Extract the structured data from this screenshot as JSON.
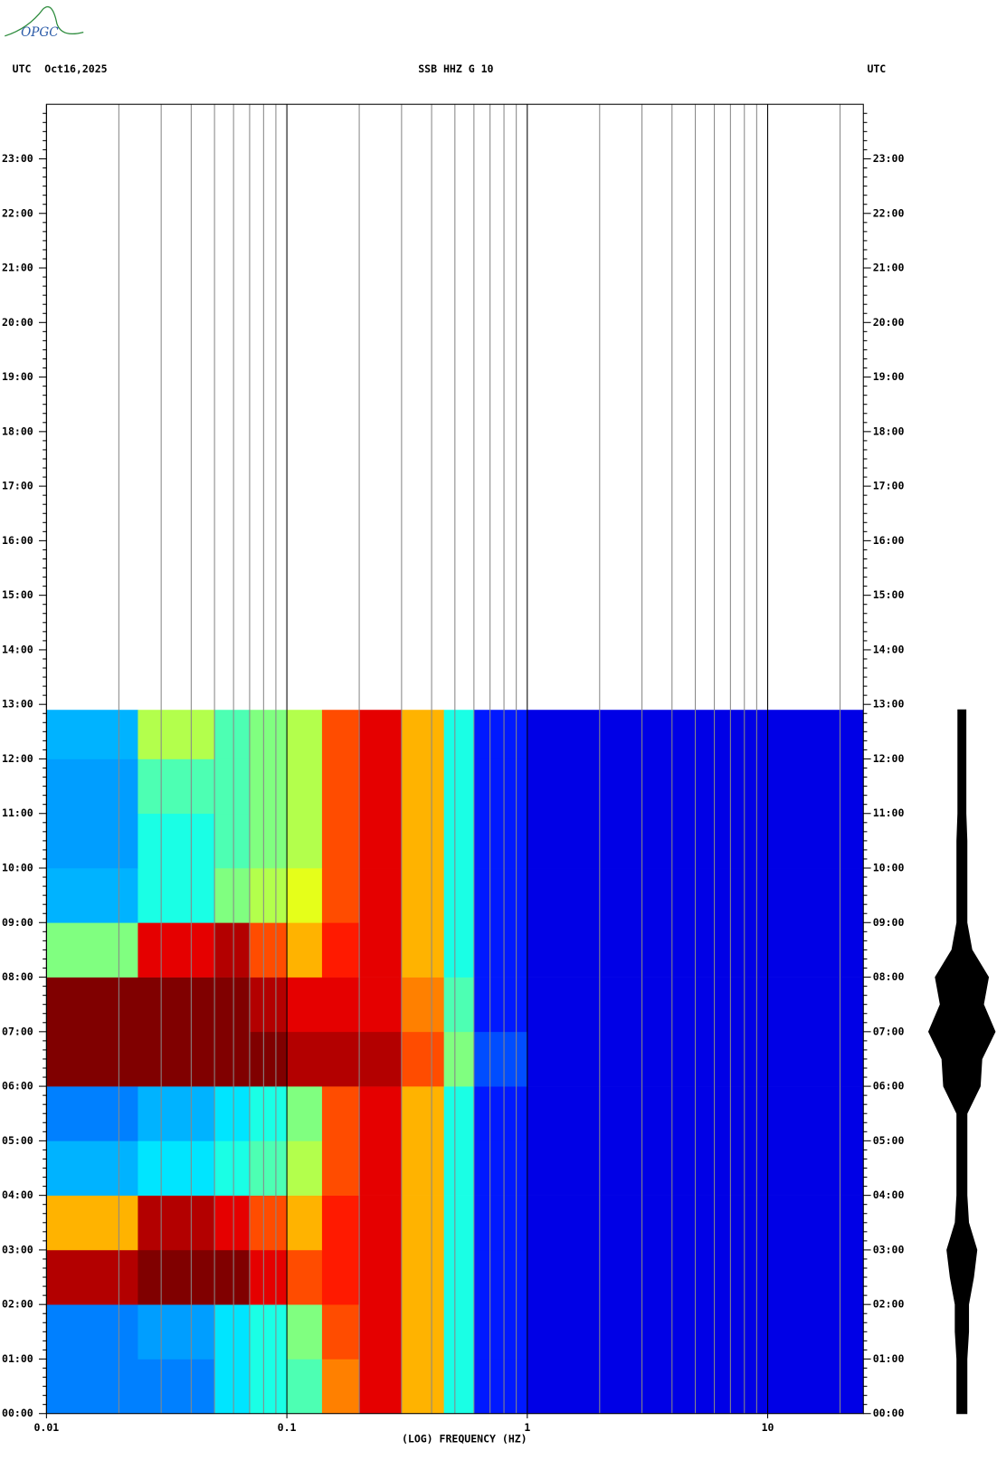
{
  "logo": "OPGC",
  "chart_data": {
    "type": "spectrogram",
    "header_left": "UTC",
    "date": "Oct16,2025",
    "title": "SSB HHZ G 10",
    "header_right": "UTC",
    "xlabel": "(LOG) FREQUENCY (HZ)",
    "xscale": "log",
    "xlim": [
      0.01,
      25
    ],
    "xticks": [
      0.01,
      0.1,
      1,
      10
    ],
    "xminor": [
      0.02,
      0.03,
      0.04,
      0.05,
      0.06,
      0.07,
      0.08,
      0.09,
      0.2,
      0.3,
      0.4,
      0.5,
      0.6,
      0.7,
      0.8,
      0.9,
      2,
      3,
      4,
      5,
      6,
      7,
      8,
      9,
      20
    ],
    "ylim": [
      0,
      24
    ],
    "yticks": [
      {
        "value": 0,
        "label": "00:00"
      },
      {
        "value": 1,
        "label": "01:00"
      },
      {
        "value": 2,
        "label": "02:00"
      },
      {
        "value": 3,
        "label": "03:00"
      },
      {
        "value": 4,
        "label": "04:00"
      },
      {
        "value": 5,
        "label": "05:00"
      },
      {
        "value": 6,
        "label": "06:00"
      },
      {
        "value": 7,
        "label": "07:00"
      },
      {
        "value": 8,
        "label": "08:00"
      },
      {
        "value": 9,
        "label": "09:00"
      },
      {
        "value": 10,
        "label": "10:00"
      },
      {
        "value": 11,
        "label": "11:00"
      },
      {
        "value": 12,
        "label": "12:00"
      },
      {
        "value": 13,
        "label": "13:00"
      },
      {
        "value": 14,
        "label": "14:00"
      },
      {
        "value": 15,
        "label": "15:00"
      },
      {
        "value": 16,
        "label": "16:00"
      },
      {
        "value": 17,
        "label": "17:00"
      },
      {
        "value": 18,
        "label": "18:00"
      },
      {
        "value": 19,
        "label": "19:00"
      },
      {
        "value": 20,
        "label": "20:00"
      },
      {
        "value": 21,
        "label": "21:00"
      },
      {
        "value": 22,
        "label": "22:00"
      },
      {
        "value": 23,
        "label": "23:00"
      }
    ],
    "colormap": "jet",
    "freq_edges": [
      0.01,
      0.024,
      0.05,
      0.07,
      0.1,
      0.14,
      0.2,
      0.3,
      0.45,
      0.6,
      1,
      25
    ],
    "time_edges": [
      0,
      1,
      2,
      3,
      4,
      5,
      6,
      7,
      8,
      9,
      10,
      11,
      12,
      12.9
    ],
    "z": [
      [
        0.25,
        0.25,
        0.35,
        0.4,
        0.45,
        0.75,
        0.9,
        0.7,
        0.4,
        0.15,
        0.1
      ],
      [
        0.25,
        0.28,
        0.35,
        0.4,
        0.5,
        0.8,
        0.9,
        0.7,
        0.4,
        0.15,
        0.1
      ],
      [
        0.95,
        1,
        1,
        0.9,
        0.8,
        0.85,
        0.9,
        0.7,
        0.4,
        0.15,
        0.1
      ],
      [
        0.7,
        0.95,
        0.9,
        0.8,
        0.7,
        0.85,
        0.9,
        0.7,
        0.4,
        0.15,
        0.1
      ],
      [
        0.3,
        0.35,
        0.4,
        0.45,
        0.55,
        0.8,
        0.9,
        0.7,
        0.4,
        0.15,
        0.1
      ],
      [
        0.25,
        0.3,
        0.35,
        0.4,
        0.5,
        0.8,
        0.9,
        0.7,
        0.4,
        0.15,
        0.1
      ],
      [
        1,
        1,
        1,
        1,
        0.95,
        0.95,
        0.95,
        0.8,
        0.5,
        0.2,
        0.1
      ],
      [
        1,
        1,
        1,
        0.95,
        0.9,
        0.9,
        0.9,
        0.75,
        0.45,
        0.15,
        0.1
      ],
      [
        0.5,
        0.9,
        0.95,
        0.8,
        0.7,
        0.85,
        0.9,
        0.7,
        0.4,
        0.15,
        0.1
      ],
      [
        0.3,
        0.4,
        0.5,
        0.55,
        0.6,
        0.8,
        0.9,
        0.7,
        0.4,
        0.15,
        0.1
      ],
      [
        0.28,
        0.4,
        0.45,
        0.5,
        0.55,
        0.8,
        0.9,
        0.7,
        0.4,
        0.15,
        0.1
      ],
      [
        0.28,
        0.45,
        0.45,
        0.5,
        0.55,
        0.8,
        0.9,
        0.7,
        0.4,
        0.15,
        0.1
      ],
      [
        0.3,
        0.55,
        0.45,
        0.5,
        0.55,
        0.8,
        0.9,
        0.7,
        0.4,
        0.15,
        0.1
      ]
    ],
    "trace": {
      "t": [
        0,
        0.5,
        1,
        1.5,
        2,
        2.5,
        3,
        3.5,
        4,
        4.5,
        5,
        5.5,
        6,
        6.5,
        7,
        7.5,
        8,
        8.5,
        9,
        9.5,
        10,
        10.5,
        11,
        11.5,
        12,
        12.5,
        12.9
      ],
      "amplitude": [
        0.15,
        0.15,
        0.15,
        0.2,
        0.2,
        0.35,
        0.45,
        0.2,
        0.15,
        0.15,
        0.15,
        0.15,
        0.55,
        0.6,
        1,
        0.65,
        0.8,
        0.3,
        0.15,
        0.15,
        0.15,
        0.15,
        0.12,
        0.12,
        0.12,
        0.12,
        0.12
      ],
      "color": "#000000"
    }
  }
}
